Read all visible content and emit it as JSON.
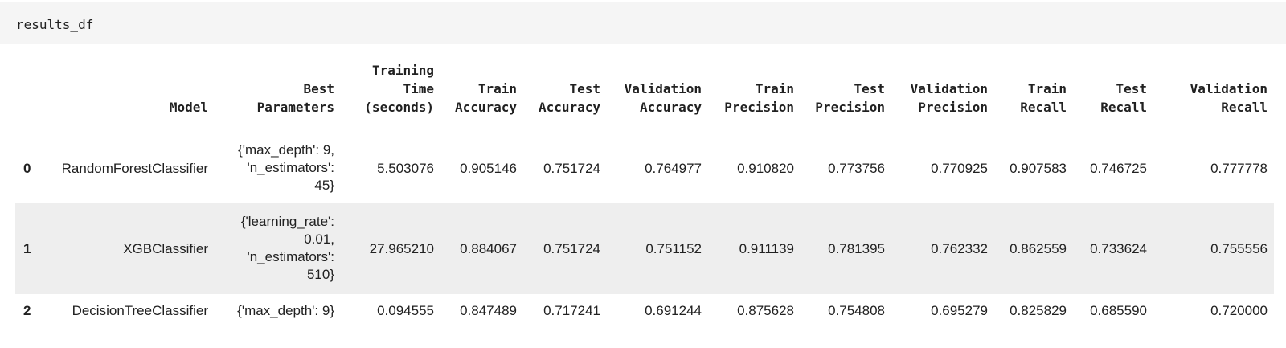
{
  "cell": {
    "code": "results_df"
  },
  "table": {
    "columns": [
      "",
      "Model",
      "Best\nParameters",
      "Training\nTime\n(seconds)",
      "Train\nAccuracy",
      "Test\nAccuracy",
      "Validation\nAccuracy",
      "Train\nPrecision",
      "Test\nPrecision",
      "Validation\nPrecision",
      "Train\nRecall",
      "Test\nRecall",
      "Validation\nRecall"
    ],
    "rows": [
      {
        "index": "0",
        "cells": [
          "RandomForestClassifier",
          "{'max_depth': 9,\n'n_estimators':\n45}",
          "5.503076",
          "0.905146",
          "0.751724",
          "0.764977",
          "0.910820",
          "0.773756",
          "0.770925",
          "0.907583",
          "0.746725",
          "0.777778"
        ]
      },
      {
        "index": "1",
        "cells": [
          "XGBClassifier",
          "{'learning_rate':\n0.01,\n'n_estimators':\n510}",
          "27.965210",
          "0.884067",
          "0.751724",
          "0.751152",
          "0.911139",
          "0.781395",
          "0.762332",
          "0.862559",
          "0.733624",
          "0.755556"
        ]
      },
      {
        "index": "2",
        "cells": [
          "DecisionTreeClassifier",
          "{'max_depth': 9}",
          "0.094555",
          "0.847489",
          "0.717241",
          "0.691244",
          "0.875628",
          "0.754808",
          "0.695279",
          "0.825829",
          "0.685590",
          "0.720000"
        ]
      }
    ]
  }
}
